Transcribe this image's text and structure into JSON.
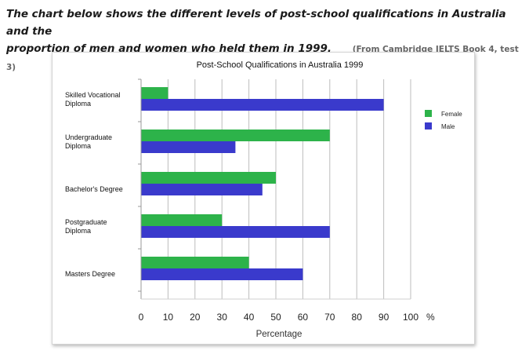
{
  "intro": {
    "line1": "The chart below shows the different levels of post-school qualifications in Australia and the",
    "line2": "proportion of men and women who held them in 1999.",
    "source": "(From Cambridge IELTS Book 4, test 3)"
  },
  "chart_data": {
    "type": "bar",
    "orientation": "horizontal",
    "title": "Post-School Qualifications in Australia 1999",
    "xlabel": "Percentage",
    "ylabel": "",
    "xlim": [
      0,
      100
    ],
    "x_ticks": [
      "0",
      "10",
      "20",
      "30",
      "40",
      "50",
      "60",
      "70",
      "80",
      "90",
      "100"
    ],
    "x_unit": "%",
    "grid": "vertical lines",
    "legend_position": "right",
    "categories": [
      [
        "Skilled Vocational",
        "Diploma"
      ],
      [
        "Undergraduate",
        "Diploma"
      ],
      [
        "Bachelor's Degree"
      ],
      [
        "Postgraduate",
        "Diploma"
      ],
      [
        "Masters Degree"
      ]
    ],
    "series": [
      {
        "name": "Female",
        "color": "#2db34a",
        "values": [
          10,
          70,
          50,
          30,
          40
        ]
      },
      {
        "name": "Male",
        "color": "#3a3acc",
        "values": [
          90,
          35,
          45,
          70,
          60
        ]
      }
    ]
  }
}
